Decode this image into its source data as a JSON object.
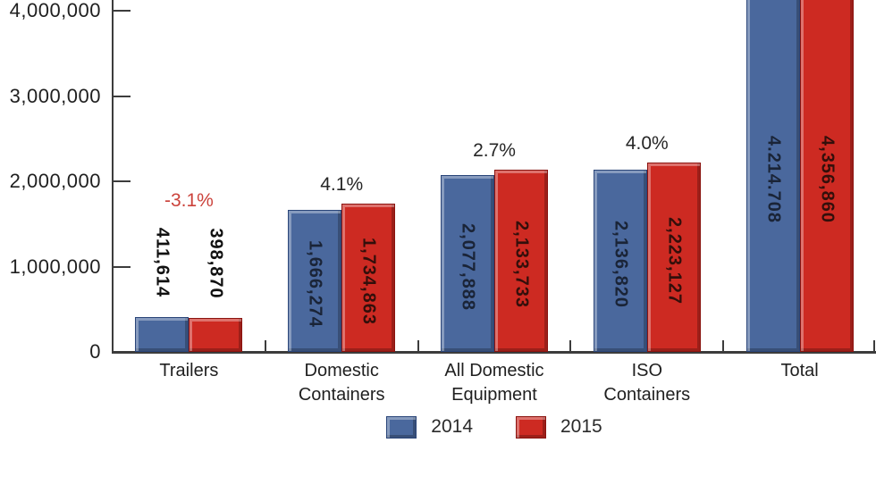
{
  "chart_data": {
    "type": "bar",
    "categories": [
      "Trailers",
      "Domestic\nContainers",
      "All Domestic\nEquipment",
      "ISO\nContainers",
      "Total"
    ],
    "category_slugs": [
      "trailers",
      "domestic-containers",
      "all-domestic-equipment",
      "iso-containers",
      "total"
    ],
    "series": [
      {
        "name": "2014",
        "color": "#4a689d",
        "border_color": "#2a4579",
        "value_label_color": "#1a2437",
        "values": [
          411614,
          1666274,
          2077888,
          2136820,
          4214708
        ],
        "value_labels": [
          "411,614",
          "1,666,274",
          "2,077,888",
          "2,136,820",
          "4.214.708"
        ]
      },
      {
        "name": "2015",
        "color": "#cd2a22",
        "border_color": "#8a130f",
        "value_label_color": "#330f0b",
        "values": [
          398870,
          1734863,
          2133733,
          2223127,
          4356860
        ],
        "value_labels": [
          "398,870",
          "1,734,863",
          "2,133,733",
          "2,223,127",
          "4,356,860"
        ]
      }
    ],
    "pct_change": [
      {
        "label": "-3.1%",
        "color": "#cb423b"
      },
      {
        "label": "4.1%",
        "color": "#262626"
      },
      {
        "label": "2.7%",
        "color": "#262626"
      },
      {
        "label": "4.0%",
        "color": "#262626"
      },
      null
    ],
    "y_axis": {
      "ticks": [
        {
          "value": 0,
          "label": "0"
        },
        {
          "value": 1000000,
          "label": "1,000,000"
        },
        {
          "value": 2000000,
          "label": "2,000,000"
        },
        {
          "value": 3000000,
          "label": "3,000,000"
        },
        {
          "value": 4000000,
          "label": "4,000,000"
        }
      ]
    },
    "ylim": [
      0,
      4120000
    ],
    "grid": false,
    "legend_position": "bottom",
    "outside_label_color": "#111111",
    "axis_color": "#3c3c3c",
    "legend": [
      {
        "label": "2014",
        "color": "#4a689d",
        "border_color": "#2a4579"
      },
      {
        "label": "2015",
        "color": "#cd2a22",
        "border_color": "#8a130f"
      }
    ]
  }
}
